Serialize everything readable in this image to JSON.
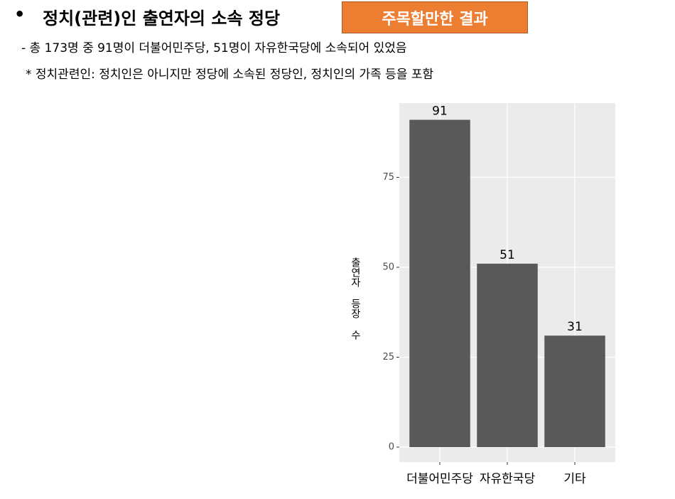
{
  "header": {
    "title": "정치(관련)인 출연자의 소속 정당",
    "badge": "주목할만한 결과"
  },
  "notes": [
    "- 총 173명 중 91명이 더불어민주당, 51명이 자유한국당에 소속되어 있었음",
    "* 정치관련인: 정치인은 아니지만 정당에 소속된 정당인, 정치인의 가족 등을 포함"
  ],
  "chart_data": {
    "type": "bar",
    "y_label": "출연자 등장 수",
    "categories": [
      "더불어민주당",
      "자유한국당",
      "기타"
    ],
    "values": [
      91,
      51,
      31
    ],
    "color": "#595959",
    "ylim": [
      -4.15,
      95.65
    ],
    "yticks": [
      0,
      25,
      50,
      75
    ],
    "grid": true
  }
}
